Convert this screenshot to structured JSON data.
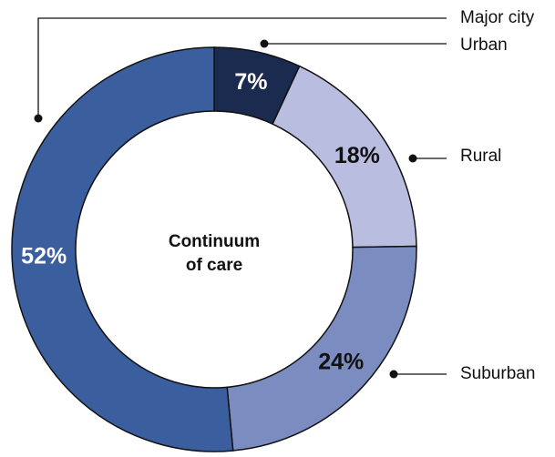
{
  "chart_data": {
    "type": "donut",
    "center_label": [
      "Continuum",
      "of care"
    ],
    "categories": [
      "Urban",
      "Rural",
      "Suburban",
      "Major city"
    ],
    "values": [
      7,
      18,
      24,
      52
    ],
    "value_labels": [
      "7%",
      "18%",
      "24%",
      "52%"
    ],
    "colors": [
      "#1b2a4f",
      "#b9bde0",
      "#7b8cc0",
      "#3b5f9e"
    ],
    "label_colors": [
      "#ffffff",
      "#111111",
      "#111111",
      "#ffffff"
    ]
  }
}
